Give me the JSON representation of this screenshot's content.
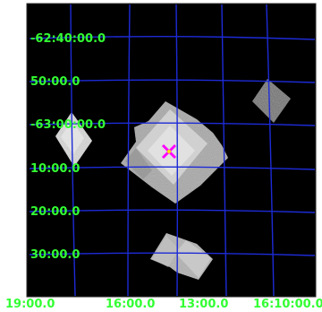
{
  "viewer": {
    "background_color": "#000000",
    "grid_color": "#1d2bd6",
    "label_color": "#33ff33",
    "marker_color": "#ff00ff",
    "marker_center_color": "#ffe000",
    "marker": "source-marker-x-icon"
  },
  "dec_labels": [
    "-62:40:00.0",
    "50:00.0",
    "-63:00:00.0",
    "10:00.0",
    "20:00.0",
    "30:00.0"
  ],
  "ra_labels": [
    "19:00.0",
    "16:00.0",
    "13:00.0",
    "16:10:00.0"
  ],
  "image_tiles": [
    {
      "name": "tile-left"
    },
    {
      "name": "tile-right"
    },
    {
      "name": "tile-center"
    },
    {
      "name": "tile-bottom"
    }
  ]
}
